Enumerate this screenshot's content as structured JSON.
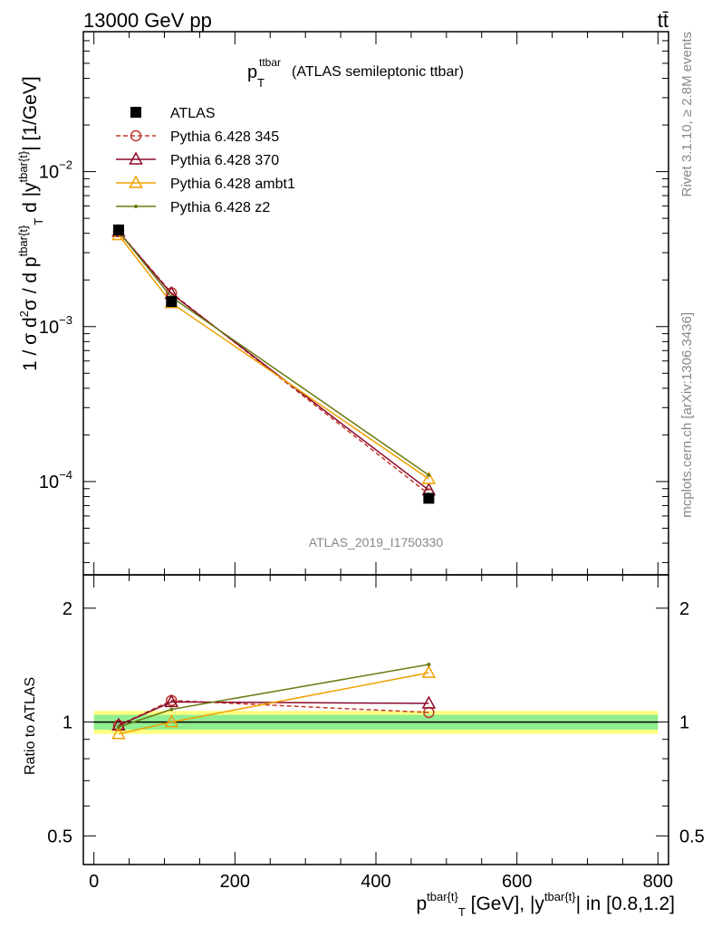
{
  "header": {
    "energy": "13000 GeV pp",
    "process": "tt̄"
  },
  "side_labels": {
    "rivet": "Rivet 3.1.10, ≥ 2.8M events",
    "mcplots": "mcplots.cern.ch [arXiv:1306.3436]"
  },
  "watermark": "ATLAS_2019_I1750330",
  "chart_data": [
    {
      "type": "line",
      "panel": "main",
      "title": {
        "main": "p",
        "sup": "ttbar",
        "sub": "T",
        "rest": " (ATLAS semileptonic ttbar)"
      },
      "ylabel": "1 / σ d²σ / d p^{tbar{t}}_T d |y^{tbar{t}}| [1/GeV]",
      "yscale": "log",
      "ylim": [
        2.5e-05,
        0.08
      ],
      "xlim": [
        -15,
        815
      ],
      "yticks": [
        {
          "value": 0.01,
          "base": "10",
          "exp": "−2"
        },
        {
          "value": 0.001,
          "base": "10",
          "exp": "−3"
        },
        {
          "value": 0.0001,
          "base": "10",
          "exp": "−4"
        }
      ],
      "legend_position": "top-left",
      "series": [
        {
          "name": "ATLAS",
          "color": "#000000",
          "marker": "square",
          "line": "none",
          "x": [
            35,
            110,
            475
          ],
          "y": [
            0.0042,
            0.00145,
            7.8e-05
          ]
        },
        {
          "name": "Pythia 6.428 345",
          "color": "#c0392b",
          "marker": "circle-open",
          "line": "dashed",
          "x": [
            35,
            110,
            475
          ],
          "y": [
            0.0041,
            0.00165,
            8.3e-05
          ]
        },
        {
          "name": "Pythia 6.428 370",
          "color": "#8b0a2a",
          "marker": "triangle-open",
          "line": "solid",
          "x": [
            35,
            110,
            475
          ],
          "y": [
            0.0041,
            0.00163,
            8.8e-05
          ]
        },
        {
          "name": "Pythia 6.428 ambt1",
          "color": "#f0a000",
          "marker": "triangle-open",
          "line": "solid",
          "x": [
            35,
            110,
            475
          ],
          "y": [
            0.0039,
            0.00142,
            0.000104
          ]
        },
        {
          "name": "Pythia 6.428 z2",
          "color": "#6b7a12",
          "marker": "dot",
          "line": "solid",
          "x": [
            35,
            110,
            475
          ],
          "y": [
            0.0041,
            0.00155,
            0.00011
          ]
        }
      ]
    },
    {
      "type": "line",
      "panel": "ratio",
      "ylabel": "Ratio to ATLAS",
      "yscale": "log",
      "ylim": [
        0.42,
        2.45
      ],
      "xlim": [
        -15,
        815
      ],
      "xlabel": "p^{tbar{t}}_T [GeV], |y^{tbar{t}}| in [0.8,1.2]",
      "xticks": [
        0,
        200,
        400,
        600,
        800
      ],
      "yticks": [
        {
          "value": 0.5,
          "label": "0.5"
        },
        {
          "value": 1,
          "label": "1"
        },
        {
          "value": 2,
          "label": "2"
        }
      ],
      "band": {
        "x": [
          0,
          800
        ],
        "inner": [
          0.955,
          1.045
        ],
        "outer": [
          0.93,
          1.07
        ],
        "inner_color": "#90ee90",
        "outer_color": "#ffff80"
      },
      "series": [
        {
          "name": "Pythia 6.428 345",
          "color": "#c0392b",
          "marker": "circle-open",
          "line": "dashed",
          "x": [
            35,
            110,
            475
          ],
          "y": [
            0.98,
            1.14,
            1.06
          ]
        },
        {
          "name": "Pythia 6.428 370",
          "color": "#8b0a2a",
          "marker": "triangle-open",
          "line": "solid",
          "x": [
            35,
            110,
            475
          ],
          "y": [
            0.98,
            1.13,
            1.12
          ]
        },
        {
          "name": "Pythia 6.428 ambt1",
          "color": "#f0a000",
          "marker": "triangle-open",
          "line": "solid",
          "x": [
            35,
            110,
            475
          ],
          "y": [
            0.93,
            1.0,
            1.35
          ]
        },
        {
          "name": "Pythia 6.428 z2",
          "color": "#6b7a12",
          "marker": "dot",
          "line": "solid",
          "x": [
            35,
            110,
            475
          ],
          "y": [
            0.97,
            1.08,
            1.42
          ]
        }
      ]
    }
  ]
}
